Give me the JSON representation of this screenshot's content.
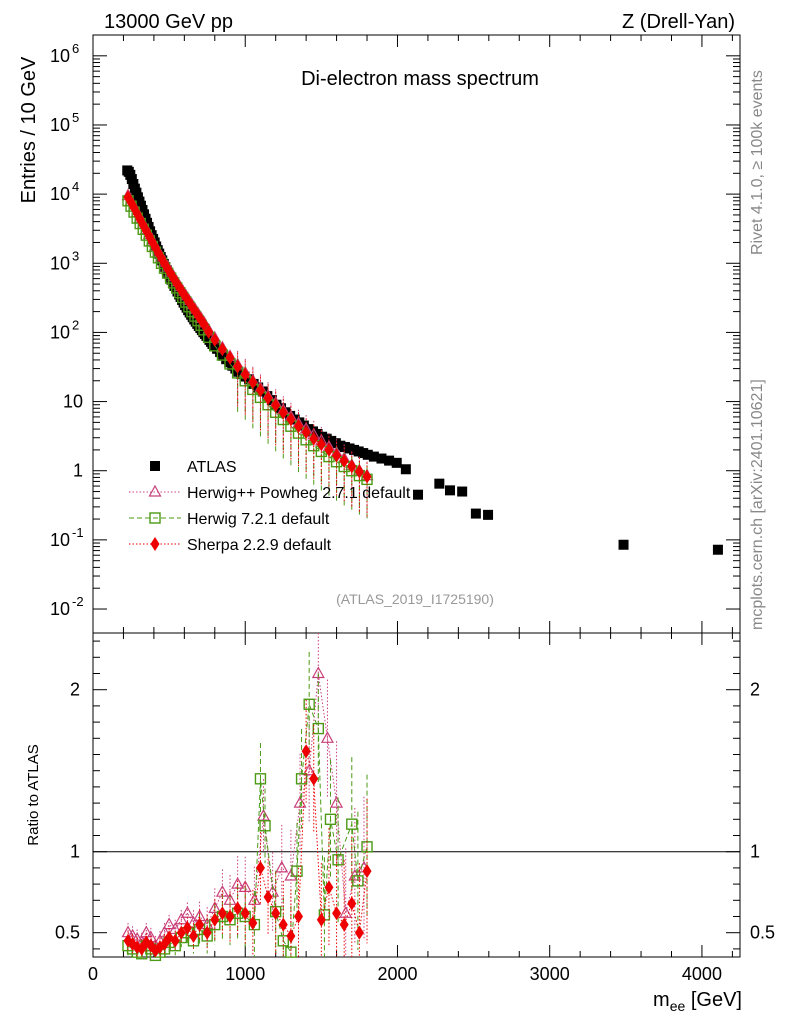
{
  "header": {
    "left": "13000 GeV pp",
    "right": "Z (Drell-Yan)"
  },
  "side_labels": {
    "rivet": "Rivet 4.1.0, ≥ 100k events",
    "mcplots": "mcplots.cern.ch [arXiv:2401.10621]"
  },
  "colors": {
    "atlas": "#000000",
    "herwigpp": "#c8407a",
    "herwig7": "#4c9a16",
    "sherpa": "#ee0000"
  },
  "chart_data": [
    {
      "type": "scatter",
      "title": "Di-electron mass spectrum",
      "analysis_tag": "(ATLAS_2019_I1725190)",
      "xlabel": "m_ee [GeV]",
      "ylabel": "Entries / 10 GeV",
      "xscale": "linear",
      "yscale": "log",
      "xlim": [
        0,
        4250
      ],
      "ylim": [
        0.0045,
        2000000
      ],
      "y_ticks": [
        "10^-2",
        "10^-1",
        "1",
        "10",
        "10^2",
        "10^3",
        "10^4",
        "10^5",
        "10^6"
      ],
      "legend_position": "lower-left",
      "series": [
        {
          "name": "ATLAS",
          "key": "atlas",
          "marker": "square-filled",
          "x": [
            225,
            235,
            245,
            255,
            265,
            275,
            285,
            295,
            305,
            315,
            325,
            335,
            345,
            355,
            365,
            375,
            385,
            395,
            405,
            415,
            425,
            435,
            445,
            455,
            465,
            475,
            485,
            495,
            505,
            515,
            525,
            535,
            545,
            555,
            565,
            575,
            585,
            595,
            605,
            615,
            625,
            635,
            645,
            655,
            665,
            675,
            685,
            695,
            705,
            715,
            725,
            735,
            745,
            755,
            765,
            775,
            785,
            795,
            815,
            835,
            855,
            875,
            895,
            915,
            935,
            955,
            975,
            995,
            1025,
            1055,
            1085,
            1115,
            1145,
            1175,
            1205,
            1235,
            1265,
            1295,
            1325,
            1355,
            1385,
            1415,
            1445,
            1475,
            1505,
            1535,
            1565,
            1595,
            1625,
            1655,
            1685,
            1715,
            1745,
            1775,
            1805,
            1845,
            1895,
            1945,
            1995,
            2055,
            2135,
            2275,
            2345,
            2425,
            2515,
            2595,
            3485,
            4105
          ],
          "y": [
            22000,
            21000,
            19000,
            16500,
            14000,
            12000,
            10500,
            9000,
            7800,
            6800,
            5900,
            5100,
            4400,
            3850,
            3350,
            2900,
            2550,
            2250,
            2000,
            1750,
            1550,
            1380,
            1230,
            1100,
            980,
            880,
            790,
            710,
            640,
            580,
            520,
            470,
            430,
            390,
            355,
            325,
            295,
            270,
            248,
            228,
            210,
            194,
            180,
            166,
            154,
            143,
            133,
            124,
            116,
            108,
            101,
            95,
            89,
            83,
            78,
            73,
            68,
            64,
            58,
            52,
            46,
            41,
            37,
            33,
            30,
            27,
            25,
            23,
            21,
            18,
            16,
            14,
            12,
            10.5,
            9,
            8,
            7,
            6.2,
            5.5,
            5,
            4.5,
            4,
            3.7,
            3.4,
            3.1,
            2.9,
            2.7,
            2.5,
            2.3,
            2.2,
            2.1,
            2.0,
            1.9,
            1.8,
            1.7,
            1.6,
            1.5,
            1.4,
            1.3,
            1.05,
            0.45,
            0.65,
            0.52,
            0.5,
            0.24,
            0.23,
            0.085,
            0.072
          ]
        },
        {
          "name": "Herwig++ Powheg 2.7.1 default",
          "key": "herwigpp",
          "marker": "triangle-open",
          "x": [
            230,
            250,
            270,
            290,
            310,
            330,
            350,
            370,
            390,
            410,
            430,
            450,
            470,
            490,
            510,
            530,
            550,
            570,
            590,
            610,
            630,
            650,
            670,
            690,
            710,
            730,
            760,
            800,
            850,
            900,
            950,
            1000,
            1050,
            1100,
            1150,
            1200,
            1250,
            1300,
            1350,
            1400,
            1450,
            1500,
            1550,
            1600,
            1650,
            1700,
            1750,
            1800
          ],
          "y": [
            9500,
            7900,
            6500,
            5400,
            4500,
            3700,
            3100,
            2600,
            2100,
            1750,
            1450,
            1230,
            1040,
            880,
            745,
            640,
            540,
            460,
            395,
            340,
            292,
            252,
            217,
            187,
            160,
            138,
            108,
            83,
            60,
            45,
            34,
            26,
            20,
            15.5,
            12,
            9.5,
            7.5,
            6,
            4.8,
            4,
            3.3,
            2.7,
            2.2,
            1.8,
            1.5,
            1.2,
            1.0,
            0.85
          ]
        },
        {
          "name": "Herwig 7.2.1 default",
          "key": "herwig7",
          "marker": "square-open",
          "x": [
            230,
            250,
            270,
            290,
            310,
            330,
            350,
            370,
            390,
            410,
            430,
            450,
            470,
            490,
            510,
            530,
            550,
            570,
            590,
            610,
            630,
            650,
            670,
            690,
            710,
            730,
            760,
            800,
            850,
            900,
            950,
            1000,
            1050,
            1100,
            1150,
            1200,
            1250,
            1300,
            1350,
            1400,
            1450,
            1500,
            1550,
            1600,
            1650,
            1700,
            1750,
            1800
          ],
          "y": [
            8000,
            6700,
            5500,
            4500,
            3750,
            3100,
            2550,
            2100,
            1750,
            1450,
            1200,
            1000,
            850,
            720,
            610,
            520,
            440,
            375,
            320,
            275,
            235,
            200,
            172,
            148,
            127,
            109,
            85,
            64,
            47,
            35,
            26,
            20,
            15,
            11.5,
            9,
            7,
            5.5,
            4.4,
            3.5,
            2.8,
            2.3,
            1.9,
            1.6,
            1.35,
            1.15,
            1.0,
            0.85,
            0.75
          ]
        },
        {
          "name": "Sherpa 2.2.9 default",
          "key": "sherpa",
          "marker": "diamond-filled",
          "x": [
            230,
            250,
            270,
            290,
            310,
            330,
            350,
            370,
            390,
            410,
            430,
            450,
            470,
            490,
            510,
            530,
            550,
            570,
            590,
            610,
            630,
            650,
            670,
            690,
            710,
            730,
            760,
            800,
            850,
            900,
            950,
            1000,
            1050,
            1100,
            1150,
            1200,
            1250,
            1300,
            1350,
            1400,
            1450,
            1500,
            1550,
            1600,
            1650,
            1700,
            1750,
            1800
          ],
          "y": [
            9000,
            7600,
            6300,
            5200,
            4300,
            3550,
            2950,
            2450,
            2030,
            1690,
            1400,
            1180,
            990,
            840,
            710,
            605,
            515,
            440,
            375,
            322,
            276,
            237,
            204,
            176,
            151,
            130,
            102,
            78,
            57,
            43,
            32,
            24.5,
            19,
            14.5,
            11.2,
            8.8,
            6.9,
            5.5,
            4.4,
            3.6,
            2.9,
            2.4,
            2.0,
            1.65,
            1.38,
            1.15,
            0.97,
            0.82
          ]
        }
      ]
    },
    {
      "type": "scatter",
      "title": "",
      "xlabel": "m_ee [GeV]",
      "ylabel": "Ratio to ATLAS",
      "xlim": [
        0,
        4250
      ],
      "ylim": [
        0.35,
        2.35
      ],
      "y_ticks": [
        "0.5",
        "1",
        "2"
      ],
      "x_ticks": [
        "0",
        "1000",
        "2000",
        "3000",
        "4000"
      ],
      "reference_line": 1.0,
      "series": [
        {
          "name": "Herwig++ Powheg 2.7.1 default",
          "key": "herwigpp",
          "marker": "triangle-open",
          "x": [
            230,
            260,
            290,
            320,
            350,
            380,
            410,
            440,
            470,
            500,
            540,
            580,
            620,
            660,
            700,
            750,
            800,
            850,
            900,
            950,
            1000,
            1060,
            1120,
            1180,
            1240,
            1300,
            1360,
            1420,
            1480,
            1540,
            1600,
            1660,
            1720,
            1780
          ],
          "y": [
            0.5,
            0.48,
            0.46,
            0.44,
            0.5,
            0.47,
            0.42,
            0.45,
            0.5,
            0.55,
            0.52,
            0.58,
            0.62,
            0.56,
            0.6,
            0.55,
            0.65,
            0.75,
            0.7,
            0.8,
            0.78,
            0.7,
            1.22,
            0.75,
            0.9,
            0.85,
            1.3,
            1.5,
            2.1,
            1.7,
            1.3,
            0.62,
            0.85,
            0.9
          ]
        },
        {
          "name": "Herwig 7.2.1 default",
          "key": "herwig7",
          "marker": "square-open",
          "x": [
            230,
            260,
            290,
            320,
            350,
            380,
            410,
            440,
            470,
            500,
            540,
            580,
            620,
            660,
            700,
            750,
            800,
            850,
            900,
            950,
            1000,
            1060,
            1100,
            1130,
            1200,
            1250,
            1300,
            1340,
            1370,
            1420,
            1480,
            1520,
            1560,
            1610,
            1700,
            1740,
            1800
          ],
          "y": [
            0.42,
            0.4,
            0.38,
            0.37,
            0.42,
            0.4,
            0.36,
            0.38,
            0.4,
            0.44,
            0.42,
            0.47,
            0.5,
            0.45,
            0.52,
            0.48,
            0.55,
            0.6,
            0.58,
            0.62,
            0.6,
            0.55,
            1.45,
            1.16,
            0.63,
            0.45,
            0.38,
            0.88,
            1.45,
            1.91,
            1.76,
            0.61,
            1.2,
            0.95,
            1.17,
            0.82,
            1.03
          ]
        },
        {
          "name": "Sherpa 2.2.9 default",
          "key": "sherpa",
          "marker": "diamond-filled",
          "x": [
            230,
            260,
            290,
            320,
            350,
            380,
            410,
            440,
            470,
            500,
            540,
            580,
            620,
            660,
            700,
            750,
            800,
            850,
            900,
            950,
            1000,
            1050,
            1100,
            1150,
            1200,
            1250,
            1300,
            1350,
            1400,
            1450,
            1500,
            1550,
            1600,
            1650,
            1700,
            1750,
            1800
          ],
          "y": [
            0.45,
            0.43,
            0.41,
            0.4,
            0.44,
            0.42,
            0.39,
            0.41,
            0.43,
            0.47,
            0.45,
            0.5,
            0.53,
            0.48,
            0.55,
            0.5,
            0.58,
            0.62,
            0.6,
            0.65,
            0.62,
            0.56,
            0.9,
            0.72,
            0.62,
            0.55,
            0.48,
            0.6,
            1.62,
            1.45,
            0.58,
            0.78,
            0.62,
            0.55,
            0.68,
            0.5,
            0.88
          ]
        }
      ]
    }
  ]
}
